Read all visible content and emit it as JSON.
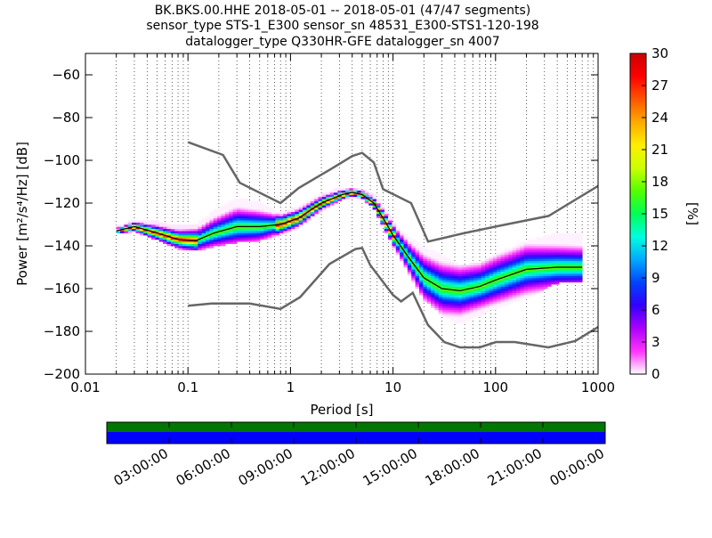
{
  "chart_data": {
    "type": "heatmap",
    "title_lines": [
      "BK.BKS.00.HHE   2018-05-01 -- 2018-05-01  (47/47 segments)",
      "sensor_type STS-1_E300 sensor_sn 48531_E300-STS1-120-198",
      "datalogger_type Q330HR-GFE datalogger_sn 4007"
    ],
    "xlabel": "Period [s]",
    "ylabel": "Power [m²/s⁴/Hz] [dB]",
    "xscale": "log",
    "xlim": [
      0.01,
      1000
    ],
    "ylim": [
      -200,
      -50
    ],
    "xticks": [
      0.01,
      0.1,
      1,
      10,
      100,
      1000
    ],
    "xtick_labels": [
      "0.01",
      "0.1",
      "1",
      "10",
      "100",
      "1000"
    ],
    "yticks": [
      -200,
      -180,
      -160,
      -140,
      -120,
      -100,
      -80,
      -60
    ],
    "ytick_labels": [
      "−200",
      "−180",
      "−160",
      "−140",
      "−120",
      "−100",
      "−80",
      "−60"
    ],
    "grid": "vertical dotted",
    "colorbar": {
      "label": "[%]",
      "range": [
        0,
        30
      ],
      "ticks": [
        0,
        3,
        6,
        9,
        12,
        15,
        18,
        21,
        24,
        27,
        30
      ],
      "colormap": [
        "#ffffff",
        "#ff33ff",
        "#aa00ff",
        "#3300ff",
        "#0044ff",
        "#00aaff",
        "#00ffdd",
        "#00ff55",
        "#55ff00",
        "#ccff00",
        "#ffee00",
        "#ffaa00",
        "#ff5500",
        "#ff0000",
        "#cc0000"
      ]
    },
    "noise_models": [
      {
        "role": "high",
        "points": [
          [
            0.1,
            -91.5
          ],
          [
            0.22,
            -97.5
          ],
          [
            0.32,
            -110.5
          ],
          [
            0.8,
            -120
          ],
          [
            1.2,
            -113
          ],
          [
            2.5,
            -104
          ],
          [
            4,
            -98
          ],
          [
            5,
            -96.5
          ],
          [
            6.5,
            -101
          ],
          [
            8,
            -113.5
          ],
          [
            15,
            -120
          ],
          [
            22,
            -138
          ],
          [
            50,
            -134
          ],
          [
            100,
            -131
          ],
          [
            330,
            -126
          ],
          [
            1000,
            -112
          ]
        ]
      },
      {
        "role": "low",
        "points": [
          [
            0.1,
            -168
          ],
          [
            0.17,
            -167
          ],
          [
            0.4,
            -167
          ],
          [
            0.8,
            -169.5
          ],
          [
            1.24,
            -164
          ],
          [
            2.4,
            -148.5
          ],
          [
            4.3,
            -141.5
          ],
          [
            5,
            -141
          ],
          [
            6,
            -149
          ],
          [
            10,
            -163
          ],
          [
            12,
            -166
          ],
          [
            15.6,
            -162
          ],
          [
            21.9,
            -177
          ],
          [
            31.6,
            -185
          ],
          [
            45,
            -187.5
          ],
          [
            70,
            -187.5
          ],
          [
            101,
            -185
          ],
          [
            154,
            -185
          ],
          [
            328,
            -187.5
          ],
          [
            600,
            -184.5
          ],
          [
            1000,
            -178
          ]
        ]
      }
    ],
    "mean_curve": [
      [
        0.02,
        -133
      ],
      [
        0.03,
        -131
      ],
      [
        0.05,
        -134
      ],
      [
        0.08,
        -137
      ],
      [
        0.12,
        -137.5
      ],
      [
        0.18,
        -134
      ],
      [
        0.3,
        -131
      ],
      [
        0.5,
        -131
      ],
      [
        0.8,
        -130
      ],
      [
        1.2,
        -127
      ],
      [
        2,
        -120
      ],
      [
        3.2,
        -116
      ],
      [
        4,
        -115
      ],
      [
        5,
        -116
      ],
      [
        6.5,
        -120
      ],
      [
        8,
        -127
      ],
      [
        10,
        -135
      ],
      [
        14,
        -145
      ],
      [
        20,
        -155
      ],
      [
        30,
        -160
      ],
      [
        45,
        -161
      ],
      [
        70,
        -159
      ],
      [
        100,
        -156
      ],
      [
        200,
        -151
      ],
      [
        400,
        -150
      ],
      [
        700,
        -150
      ]
    ],
    "density_band": {
      "periods": [
        0.02,
        0.03,
        0.05,
        0.08,
        0.12,
        0.18,
        0.3,
        0.5,
        0.8,
        1.2,
        2,
        3.2,
        4,
        5,
        6.5,
        8,
        10,
        14,
        20,
        30,
        45,
        70,
        100,
        200,
        400,
        700
      ],
      "low": [
        -134,
        -133,
        -137,
        -141,
        -142,
        -140,
        -138,
        -137,
        -135,
        -131,
        -123,
        -118,
        -117,
        -118,
        -122,
        -131,
        -140,
        -152,
        -165,
        -172,
        -176,
        -172,
        -169,
        -164,
        -157,
        -156
      ],
      "high": [
        -131,
        -128,
        -129,
        -131,
        -130,
        -124,
        -118,
        -120,
        -125,
        -122,
        -116,
        -113,
        -113,
        -114,
        -116,
        -122,
        -129,
        -136,
        -141,
        -145,
        -150,
        -148,
        -144,
        -138,
        -134,
        -134
      ]
    },
    "time_bar": {
      "tick_labels": [
        "03:00:00",
        "06:00:00",
        "09:00:00",
        "12:00:00",
        "15:00:00",
        "18:00:00",
        "21:00:00",
        "00:00:00"
      ],
      "top_color": "#007700",
      "bottom_color": "#0000ff"
    }
  }
}
